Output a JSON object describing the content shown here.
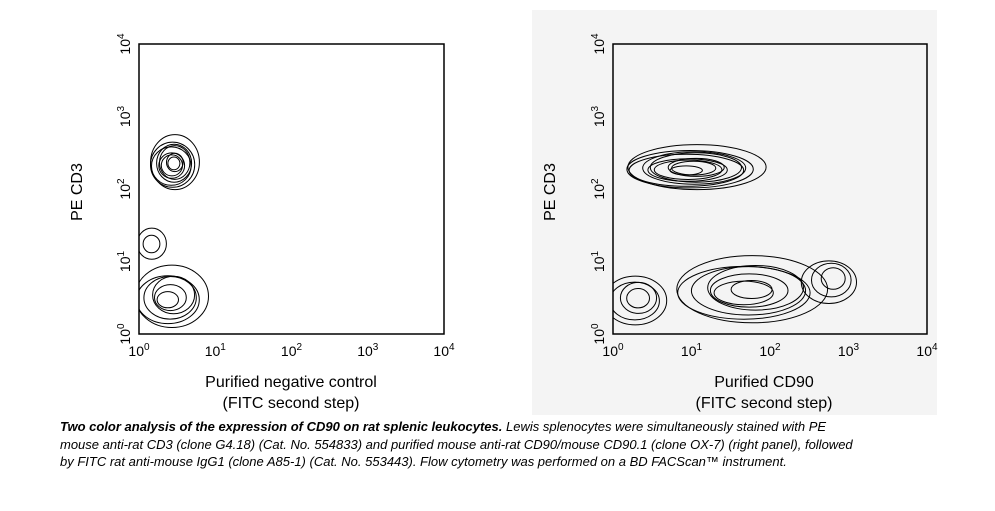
{
  "chart_data": [
    {
      "type": "contour",
      "ylabel": "PE CD3",
      "xlabel_line1": "Purified negative control",
      "xlabel_line2": "(FITC second step)",
      "x_scale": "log",
      "y_scale": "log",
      "xlim": [
        1,
        10000
      ],
      "ylim": [
        1,
        10000
      ],
      "x_ticks": [
        {
          "base": "10",
          "exp": "0"
        },
        {
          "base": "10",
          "exp": "1"
        },
        {
          "base": "10",
          "exp": "2"
        },
        {
          "base": "10",
          "exp": "3"
        },
        {
          "base": "10",
          "exp": "4"
        }
      ],
      "y_ticks": [
        {
          "base": "10",
          "exp": "0"
        },
        {
          "base": "10",
          "exp": "1"
        },
        {
          "base": "10",
          "exp": "2"
        },
        {
          "base": "10",
          "exp": "3"
        },
        {
          "base": "10",
          "exp": "4"
        }
      ],
      "populations": [
        {
          "cx": 2.8,
          "cy": 220,
          "sx": 0.2,
          "sy": 0.22,
          "levels": 9
        },
        {
          "cx": 2.6,
          "cy": 3.2,
          "sx": 0.3,
          "sy": 0.26,
          "levels": 6
        },
        {
          "cx": 1.5,
          "cy": 18,
          "sx": 0.12,
          "sy": 0.14,
          "levels": 2
        }
      ]
    },
    {
      "type": "contour",
      "ylabel": "PE CD3",
      "xlabel_line1": "Purified CD90",
      "xlabel_line2": "(FITC second step)",
      "x_scale": "log",
      "y_scale": "log",
      "xlim": [
        1,
        10000
      ],
      "ylim": [
        1,
        10000
      ],
      "x_ticks": [
        {
          "base": "10",
          "exp": "0"
        },
        {
          "base": "10",
          "exp": "1"
        },
        {
          "base": "10",
          "exp": "2"
        },
        {
          "base": "10",
          "exp": "3"
        },
        {
          "base": "10",
          "exp": "4"
        }
      ],
      "y_ticks": [
        {
          "base": "10",
          "exp": "0"
        },
        {
          "base": "10",
          "exp": "1"
        },
        {
          "base": "10",
          "exp": "2"
        },
        {
          "base": "10",
          "exp": "3"
        },
        {
          "base": "10",
          "exp": "4"
        }
      ],
      "populations": [
        {
          "cx": 10,
          "cy": 190,
          "sx": 0.55,
          "sy": 0.18,
          "levels": 10
        },
        {
          "cx": 55,
          "cy": 4.0,
          "sx": 0.6,
          "sy": 0.28,
          "levels": 7
        },
        {
          "cx": 2.0,
          "cy": 3.0,
          "sx": 0.25,
          "sy": 0.22,
          "levels": 4
        },
        {
          "cx": 600,
          "cy": 5.5,
          "sx": 0.22,
          "sy": 0.2,
          "levels": 3
        }
      ]
    }
  ],
  "caption": {
    "bold": "Two color analysis of the expression of CD90 on rat splenic leukocytes.",
    "rest": " Lewis splenocytes were simultaneously stained with PE mouse anti-rat CD3 (clone G4.18) (Cat. No. 554833) and purified mouse anti-rat CD90/mouse CD90.1 (clone OX-7) (right panel), followed by FITC rat anti-mouse IgG1 (clone A85-1) (Cat. No. 553443). Flow cytometry was performed on a BD FACScan™ instrument."
  }
}
